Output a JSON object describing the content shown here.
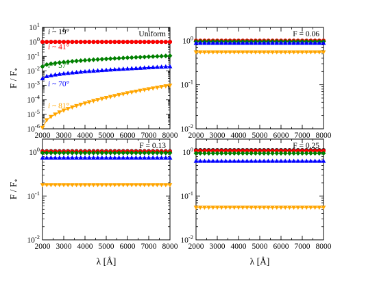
{
  "figure": {
    "ylabel": "F / F",
    "ylabel_subscript": "*",
    "xlabel": "λ [Å]"
  },
  "chart_data": [
    {
      "type": "scatter",
      "label": "Uniform",
      "xlim": [
        2000,
        8000
      ],
      "ylim": [
        1e-06,
        10
      ],
      "yscale": "log",
      "x_ticks": [
        2000,
        3000,
        4000,
        5000,
        6000,
        7000,
        8000
      ],
      "y_ticks": [
        "10^-6",
        "10^-5",
        "10^-4",
        "10^-3",
        "10^-2",
        "10^-1",
        "10^0",
        "10^1"
      ],
      "series": [
        {
          "name": "i ~ 19°",
          "color": "#000000",
          "marker": "circle",
          "x_range": [
            2000,
            8000
          ],
          "y_start": 1.0,
          "y_end": 1.0
        },
        {
          "name": "i ~ 41°",
          "color": "#ff0000",
          "marker": "circle",
          "x_range": [
            2000,
            8000
          ],
          "y_start": 1.0,
          "y_end": 1.0
        },
        {
          "name": "i ~ 57°",
          "color": "#008000",
          "marker": "diamond",
          "x_range": [
            2000,
            8000
          ],
          "y_start": 0.02,
          "y_end": 0.11
        },
        {
          "name": "i ~ 70°",
          "color": "#0000ff",
          "marker": "triangle-up",
          "x_range": [
            2000,
            8000
          ],
          "y_start": 0.003,
          "y_end": 0.02
        },
        {
          "name": "i ~ 81°",
          "color": "#ffa500",
          "marker": "triangle-down",
          "x_range": [
            2000,
            8000
          ],
          "y_start": 1.2e-06,
          "y_end": 0.001
        }
      ]
    },
    {
      "type": "scatter",
      "label": "F = 0.06",
      "xlim": [
        2000,
        8000
      ],
      "ylim": [
        0.01,
        2
      ],
      "yscale": "log",
      "x_ticks": [
        2000,
        3000,
        4000,
        5000,
        6000,
        7000,
        8000
      ],
      "y_ticks": [
        "10^-2",
        "10^-1",
        "10^0"
      ],
      "series": [
        {
          "name": "i ~ 19°",
          "color": "#000000",
          "marker": "circle",
          "x_range": [
            2000,
            8000
          ],
          "y_start": 1.0,
          "y_end": 1.0
        },
        {
          "name": "i ~ 41°",
          "color": "#ff0000",
          "marker": "circle",
          "x_range": [
            2000,
            8000
          ],
          "y_start": 1.0,
          "y_end": 1.0
        },
        {
          "name": "i ~ 57°",
          "color": "#008000",
          "marker": "diamond",
          "x_range": [
            2000,
            8000
          ],
          "y_start": 0.96,
          "y_end": 0.96
        },
        {
          "name": "i ~ 70°",
          "color": "#0000ff",
          "marker": "triangle-up",
          "x_range": [
            2000,
            8000
          ],
          "y_start": 0.88,
          "y_end": 0.88
        },
        {
          "name": "i ~ 81°",
          "color": "#ffa500",
          "marker": "triangle-down",
          "x_range": [
            2000,
            8000
          ],
          "y_start": 0.55,
          "y_end": 0.55
        }
      ]
    },
    {
      "type": "scatter",
      "label": "F = 0.13",
      "xlim": [
        2000,
        8000
      ],
      "ylim": [
        0.01,
        2
      ],
      "yscale": "log",
      "x_ticks": [
        2000,
        3000,
        4000,
        5000,
        6000,
        7000,
        8000
      ],
      "y_ticks": [
        "10^-2",
        "10^-1",
        "10^0"
      ],
      "series": [
        {
          "name": "i ~ 19°",
          "color": "#000000",
          "marker": "circle",
          "x_range": [
            2000,
            8000
          ],
          "y_start": 1.06,
          "y_end": 1.06
        },
        {
          "name": "i ~ 41°",
          "color": "#ff0000",
          "marker": "circle",
          "x_range": [
            2000,
            8000
          ],
          "y_start": 1.04,
          "y_end": 1.04
        },
        {
          "name": "i ~ 57°",
          "color": "#008000",
          "marker": "diamond",
          "x_range": [
            2000,
            8000
          ],
          "y_start": 0.97,
          "y_end": 0.97
        },
        {
          "name": "i ~ 70°",
          "color": "#0000ff",
          "marker": "triangle-up",
          "x_range": [
            2000,
            8000
          ],
          "y_start": 0.75,
          "y_end": 0.75
        },
        {
          "name": "i ~ 81°",
          "color": "#ffa500",
          "marker": "triangle-down",
          "x_range": [
            2000,
            8000
          ],
          "y_start": 0.18,
          "y_end": 0.18
        }
      ]
    },
    {
      "type": "scatter",
      "label": "F = 0.25",
      "xlim": [
        2000,
        8000
      ],
      "ylim": [
        0.01,
        2
      ],
      "yscale": "log",
      "x_ticks": [
        2000,
        3000,
        4000,
        5000,
        6000,
        7000,
        8000
      ],
      "y_ticks": [
        "10^-2",
        "10^-1",
        "10^0"
      ],
      "series": [
        {
          "name": "i ~ 19°",
          "color": "#000000",
          "marker": "circle",
          "x_range": [
            2000,
            8000
          ],
          "y_start": 1.12,
          "y_end": 1.12
        },
        {
          "name": "i ~ 41°",
          "color": "#ff0000",
          "marker": "circle",
          "x_range": [
            2000,
            8000
          ],
          "y_start": 1.08,
          "y_end": 1.08
        },
        {
          "name": "i ~ 57°",
          "color": "#008000",
          "marker": "diamond",
          "x_range": [
            2000,
            8000
          ],
          "y_start": 0.95,
          "y_end": 0.95
        },
        {
          "name": "i ~ 70°",
          "color": "#0000ff",
          "marker": "triangle-up",
          "x_range": [
            2000,
            8000
          ],
          "y_start": 0.63,
          "y_end": 0.63
        },
        {
          "name": "i ~ 81°",
          "color": "#ffa500",
          "marker": "triangle-down",
          "x_range": [
            2000,
            8000
          ],
          "y_start": 0.055,
          "y_end": 0.055
        }
      ]
    }
  ]
}
